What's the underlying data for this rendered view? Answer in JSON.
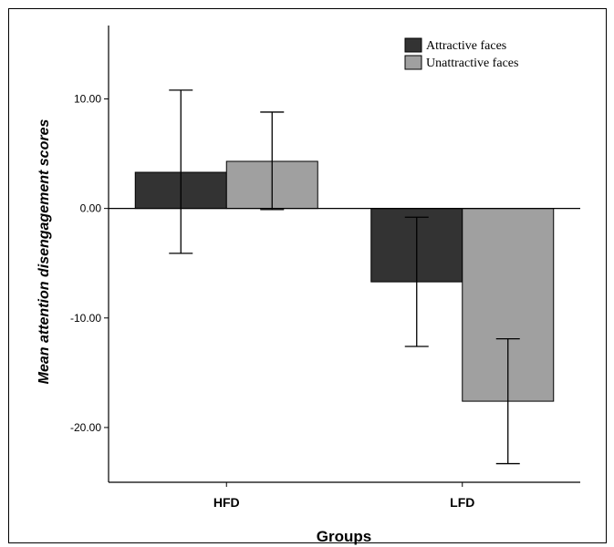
{
  "chart_data": {
    "type": "bar",
    "categories": [
      "HFD",
      "LFD"
    ],
    "series": [
      {
        "name": "Attractive faces",
        "color": "#333333",
        "values": [
          3.3,
          -6.7
        ],
        "error_low": [
          -4.1,
          -12.6
        ],
        "error_high": [
          10.8,
          -0.8
        ]
      },
      {
        "name": "Unattractive faces",
        "color": "#a0a0a0",
        "values": [
          4.3,
          -17.6
        ],
        "error_low": [
          -0.1,
          -23.3
        ],
        "error_high": [
          8.8,
          -11.9
        ]
      }
    ],
    "title": "",
    "xlabel": "Groups",
    "ylabel": "Mean attention disengagement scores",
    "ylim": [
      -25,
      16.7
    ],
    "yticks": [
      10,
      0,
      -10,
      -20
    ],
    "ytick_labels": [
      "10.00",
      "0.00",
      "-10.00",
      "-20.00"
    ],
    "grid": false,
    "legend_position": "top-right"
  }
}
